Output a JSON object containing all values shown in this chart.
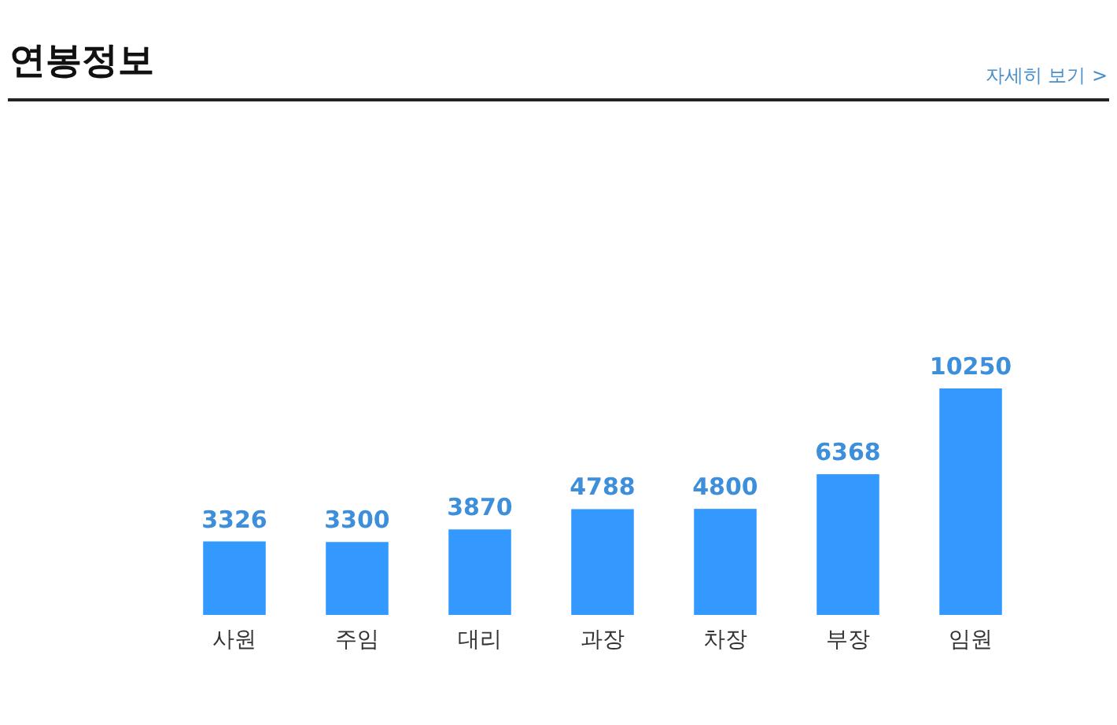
{
  "chart_data": {
    "type": "bar",
    "title": "연봉정보",
    "annotations": [
      "자세히 보기 >"
    ],
    "categories": [
      "사원",
      "주임",
      "대리",
      "과장",
      "차장",
      "부장",
      "임원"
    ],
    "values": [
      3326,
      3300,
      3870,
      4788,
      4800,
      6368,
      10250
    ],
    "color": "#3399ff",
    "data_labels": true
  }
}
